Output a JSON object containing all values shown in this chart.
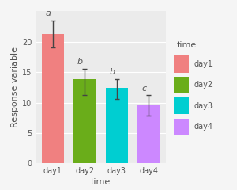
{
  "categories": [
    "day1",
    "day2",
    "day3",
    "day4"
  ],
  "values": [
    21.3,
    13.8,
    12.4,
    9.7
  ],
  "errors_upper": [
    2.2,
    1.8,
    1.5,
    1.5
  ],
  "errors_lower": [
    2.2,
    2.5,
    1.8,
    1.8
  ],
  "bar_colors": [
    "#F08080",
    "#6AAD1A",
    "#00CED1",
    "#CC88FF"
  ],
  "letters": [
    "a",
    "b",
    "b",
    "c"
  ],
  "xlabel": "time",
  "ylabel": "Response variable",
  "ylim": [
    0,
    25
  ],
  "yticks": [
    0,
    5,
    10,
    15,
    20
  ],
  "legend_title": "time",
  "legend_labels": [
    "day1",
    "day2",
    "day3",
    "day4"
  ],
  "legend_colors": [
    "#F08080",
    "#6AAD1A",
    "#00CED1",
    "#CC88FF"
  ],
  "plot_bg": "#EBEBEB",
  "outer_bg": "#F5F5F5",
  "grid_color": "#FFFFFF"
}
